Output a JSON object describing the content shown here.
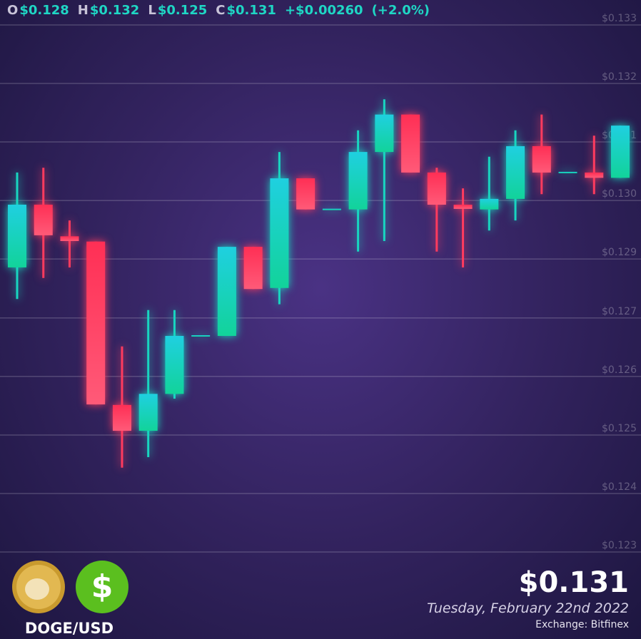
{
  "chart_data": {
    "type": "candlestick",
    "open": [
      0.1284,
      0.12959,
      0.12899,
      0.12889,
      0.12579,
      0.1253,
      0.126,
      0.1271,
      0.1271,
      0.12879,
      0.12801,
      0.13009,
      0.1295,
      0.1295,
      0.13059,
      0.1313,
      0.1302,
      0.12959,
      0.1295,
      0.1297,
      0.1307,
      0.1302,
      0.1302,
      0.1301
    ],
    "high": [
      0.1302,
      0.13029,
      0.12929,
      0.12889,
      0.1269,
      0.12759,
      0.12759,
      0.1271,
      0.12879,
      0.12879,
      0.13059,
      0.13009,
      0.1295,
      0.131,
      0.13159,
      0.1313,
      0.13029,
      0.1299,
      0.1305,
      0.131,
      0.1313,
      0.1302,
      0.1309,
      0.13109
    ],
    "low": [
      0.1278,
      0.1282,
      0.1284,
      0.1258,
      0.1246,
      0.1248,
      0.12591,
      0.1271,
      0.1271,
      0.12799,
      0.1277,
      0.1295,
      0.1295,
      0.1287,
      0.1289,
      0.1302,
      0.1287,
      0.1284,
      0.1291,
      0.12929,
      0.12979,
      0.1302,
      0.12979,
      0.1301
    ],
    "close": [
      0.12959,
      0.12901,
      0.1289,
      0.1258,
      0.1253,
      0.126,
      0.1271,
      0.1271,
      0.12879,
      0.12799,
      0.13009,
      0.1295,
      0.1295,
      0.13059,
      0.1313,
      0.1302,
      0.12959,
      0.12951,
      0.1297,
      0.1307,
      0.1302,
      0.1302,
      0.1301,
      0.13109
    ],
    "up_color": "#18d6c0",
    "down_color": "#ff3b5e",
    "ylim": [
      0.123,
      0.133
    ],
    "yticks": [
      {
        "value": 0.133,
        "label": "$0.133"
      },
      {
        "value": 0.13189,
        "label": "$0.132"
      },
      {
        "value": 0.13078,
        "label": "$0.131"
      },
      {
        "value": 0.12967,
        "label": "$0.130"
      },
      {
        "value": 0.12856,
        "label": "$0.129"
      },
      {
        "value": 0.12744,
        "label": "$0.127"
      },
      {
        "value": 0.12633,
        "label": "$0.126"
      },
      {
        "value": 0.12522,
        "label": "$0.125"
      },
      {
        "value": 0.12411,
        "label": "$0.124"
      },
      {
        "value": 0.123,
        "label": "$0.123"
      }
    ],
    "grid": true,
    "summary": [
      {
        "label": "O",
        "value": "$0.128"
      },
      {
        "label": "H",
        "value": "$0.132"
      },
      {
        "label": "L",
        "value": "$0.125"
      },
      {
        "label": "C",
        "value": "$0.131"
      }
    ],
    "change": "+$0.00260",
    "change_pct": "(+2.0%)"
  },
  "footer": {
    "pair": "DOGE/USD",
    "icon_symbol": "$",
    "price": "$0.131",
    "date": "Tuesday, February 22nd 2022",
    "exchange": "Exchange: Bitfinex"
  }
}
